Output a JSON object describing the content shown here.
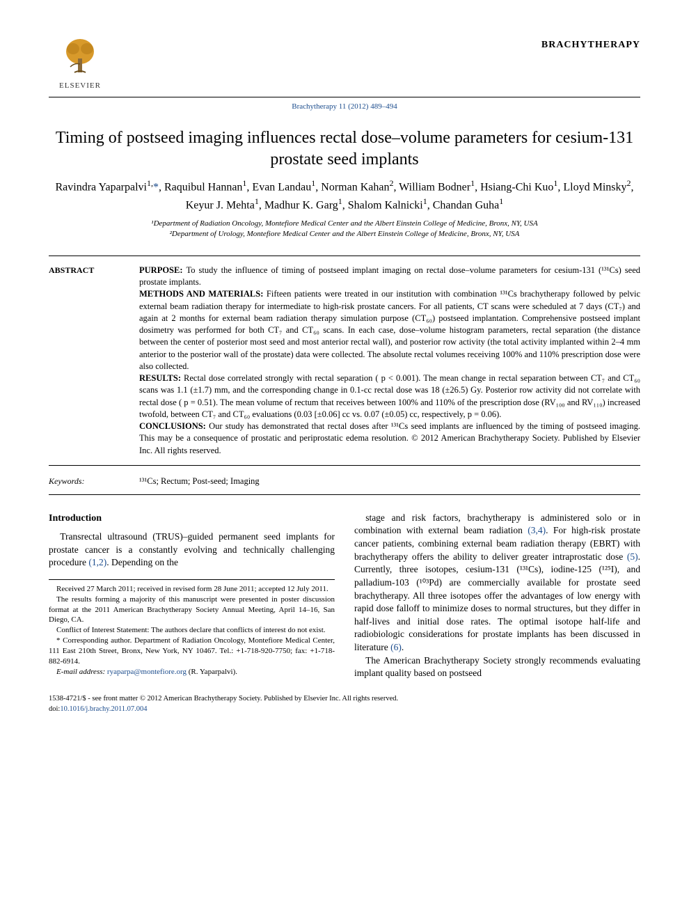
{
  "header": {
    "publisher": "ELSEVIER",
    "journal": "BRACHYTHERAPY",
    "citation": "Brachytherapy 11 (2012) 489–494",
    "logo_colors": {
      "trunk": "#8a6a3a",
      "leaves": "#d89a2b",
      "stroke": "#6b4e1e"
    }
  },
  "title": "Timing of postseed imaging influences rectal dose–volume parameters for cesium-131 prostate seed implants",
  "authors_html": "Ravindra Yaparpalvi<sup>1,</sup><span class='corr'>*</span>, Raquibul Hannan<sup>1</sup>, Evan Landau<sup>1</sup>, Norman Kahan<sup>2</sup>, William Bodner<sup>1</sup>, Hsiang-Chi Kuo<sup>1</sup>, Lloyd Minsky<sup>2</sup>, Keyur J. Mehta<sup>1</sup>, Madhur K. Garg<sup>1</sup>, Shalom Kalnicki<sup>1</sup>, Chandan Guha<sup>1</sup>",
  "affiliations": [
    "¹Department of Radiation Oncology, Montefiore Medical Center and the Albert Einstein College of Medicine, Bronx, NY, USA",
    "²Department of Urology, Montefiore Medical Center and the Albert Einstein College of Medicine, Bronx, NY, USA"
  ],
  "abstract": {
    "label": "ABSTRACT",
    "purpose": "To study the influence of timing of postseed implant imaging on rectal dose–volume parameters for cesium-131 (¹³¹Cs) seed prostate implants.",
    "methods": "Fifteen patients were treated in our institution with combination ¹³¹Cs brachytherapy followed by pelvic external beam radiation therapy for intermediate to high-risk prostate cancers. For all patients, CT scans were scheduled at 7 days (CT₇) and again at 2 months for external beam radiation therapy simulation purpose (CT₆₀) postseed implantation. Comprehensive postseed implant dosimetry was performed for both CT₇ and CT₆₀ scans. In each case, dose–volume histogram parameters, rectal separation (the distance between the center of posterior most seed and most anterior rectal wall), and posterior row activity (the total activity implanted within 2–4 mm anterior to the posterior wall of the prostate) data were collected. The absolute rectal volumes receiving 100% and 110% prescription dose were also collected.",
    "results": "Rectal dose correlated strongly with rectal separation ( p < 0.001). The mean change in rectal separation between CT₇ and CT₆₀ scans was 1.1 (±1.7) mm, and the corresponding change in 0.1-cc rectal dose was 18 (±26.5) Gy. Posterior row activity did not correlate with rectal dose ( p = 0.51). The mean volume of rectum that receives between 100% and 110% of the prescription dose (RV₁₀₀ and RV₁₁₀) increased twofold, between CT₇ and CT₆₀ evaluations (0.03 [±0.06] cc vs. 0.07 (±0.05) cc, respectively, p = 0.06).",
    "conclusions": "Our study has demonstrated that rectal doses after ¹³¹Cs seed implants are influenced by the timing of postseed imaging. This may be a consequence of prostatic and periprostatic edema resolution. © 2012 American Brachytherapy Society. Published by Elsevier Inc. All rights reserved."
  },
  "keywords": {
    "label": "Keywords:",
    "text": "¹³¹Cs; Rectum; Post-seed; Imaging"
  },
  "introduction": {
    "heading": "Introduction",
    "para1_pre": "Transrectal ultrasound (TRUS)–guided permanent seed implants for prostate cancer is a constantly evolving and technically challenging procedure ",
    "para1_ref": "(1,2)",
    "para1_post": ". Depending on the",
    "para2_a": "stage and risk factors, brachytherapy is administered solo or in combination with external beam radiation ",
    "para2_ref1": "(3,4)",
    "para2_b": ". For high-risk prostate cancer patients, combining external beam radiation therapy (EBRT) with brachytherapy offers the ability to deliver greater intraprostatic dose ",
    "para2_ref2": "(5)",
    "para2_c": ". Currently, three isotopes, cesium-131 (¹³¹Cs), iodine-125 (¹²⁵I), and palladium-103 (¹⁰³Pd) are commercially available for prostate seed brachytherapy. All three isotopes offer the advantages of low energy with rapid dose falloff to minimize doses to normal structures, but they differ in half-lives and initial dose rates. The optimal isotope half-life and radiobiologic considerations for prostate implants has been discussed in literature ",
    "para2_ref3": "(6)",
    "para2_d": ".",
    "para3": "The American Brachytherapy Society strongly recommends evaluating implant quality based on postseed"
  },
  "footnotes": {
    "received": "Received 27 March 2011; received in revised form 28 June 2011; accepted 12 July 2011.",
    "poster": "The results forming a majority of this manuscript were presented in poster discussion format at the 2011 American Brachytherapy Society Annual Meeting, April 14–16, San Diego, CA.",
    "coi": "Conflict of Interest Statement: The authors declare that conflicts of interest do not exist.",
    "corr": "* Corresponding author. Department of Radiation Oncology, Montefiore Medical Center, 111 East 210th Street, Bronx, New York, NY 10467. Tel.: +1-718-920-7750; fax: +1-718-882-6914.",
    "email_label": "E-mail address:",
    "email": "ryaparpa@montefiore.org",
    "email_tail": " (R. Yaparpalvi)."
  },
  "bottom": {
    "line1": "1538-4721/$ - see front matter © 2012 American Brachytherapy Society. Published by Elsevier Inc. All rights reserved.",
    "doi_label": "doi:",
    "doi": "10.1016/j.brachy.2011.07.004"
  }
}
